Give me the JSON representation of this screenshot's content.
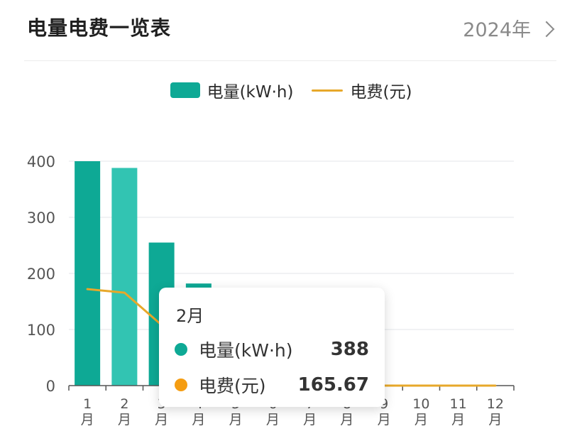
{
  "header": {
    "title": "电量电费一览表",
    "year": "2024年"
  },
  "legend": [
    {
      "label": "电量(kW·h)",
      "color": "#0ea995",
      "kind": "bar"
    },
    {
      "label": "电费(元)",
      "color": "#e7a82a",
      "kind": "line"
    }
  ],
  "chart_data": {
    "type": "bar",
    "categories": [
      "1\n月",
      "2\n月",
      "3\n月",
      "4\n月",
      "5\n月",
      "6\n月",
      "7\n月",
      "8\n月",
      "9\n月",
      "10\n月",
      "11\n月",
      "12\n月"
    ],
    "yticks": [
      0,
      100,
      200,
      300,
      400
    ],
    "ylim": [
      0,
      400
    ],
    "series": [
      {
        "name": "电量(kW·h)",
        "type": "bar",
        "color": "#0ea995",
        "highlight_color": "#32c4b2",
        "values": [
          400,
          388,
          255,
          182,
          0,
          0,
          0,
          0,
          0,
          0,
          0,
          0
        ]
      },
      {
        "name": "电费(元)",
        "type": "line",
        "color": "#e7a82a",
        "values": [
          172,
          165.67,
          108,
          78,
          0,
          0,
          0,
          0,
          0,
          0,
          0,
          0
        ]
      }
    ],
    "highlighted_index": 1,
    "grid": true
  },
  "tooltip": {
    "title": "2月",
    "rows": [
      {
        "label": "电量(kW·h)",
        "value": "388",
        "color": "#0ea995"
      },
      {
        "label": "电费(元)",
        "value": "165.67",
        "color": "#f59d12"
      }
    ]
  }
}
